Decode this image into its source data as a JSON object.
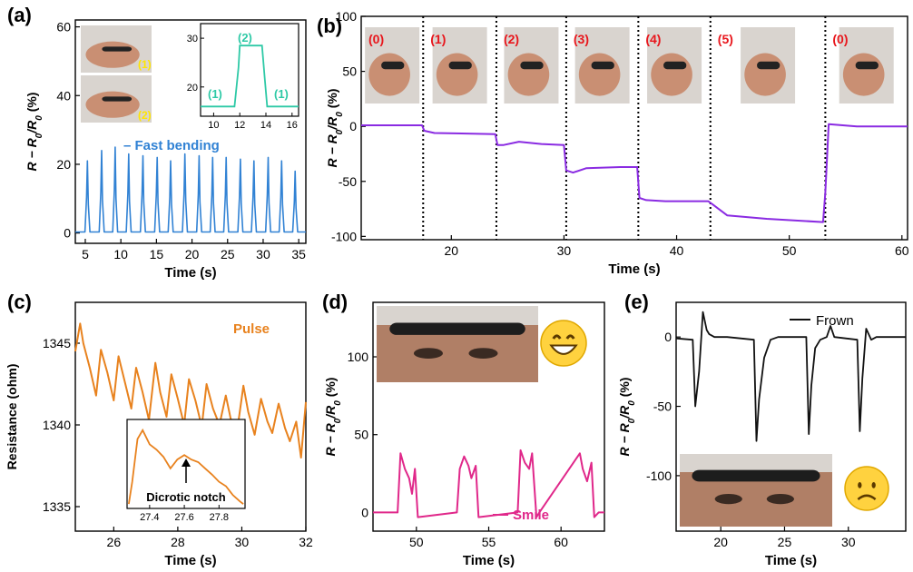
{
  "figure": {
    "panel_labels": [
      "(a)",
      "(b)",
      "(c)",
      "(d)",
      "(e)"
    ]
  },
  "colors": {
    "a": "#3182d4",
    "a_inset": "#2ec9a6",
    "b": "#8a2be2",
    "c": "#e8821e",
    "d": "#e0288a",
    "e": "#111111",
    "photo_label_yellow": "#ffe600",
    "photo_label_red": "#e8161c"
  },
  "chart_data": [
    {
      "panel": "a",
      "type": "line",
      "xlabel": "Time (s)",
      "ylabel": "R − R0/R0 (%)",
      "xlim": [
        3.6,
        36
      ],
      "ylim": [
        -3,
        62
      ],
      "xticks": [
        5,
        10,
        15,
        20,
        25,
        30,
        35
      ],
      "yticks": [
        0,
        20,
        40,
        60
      ],
      "legend": "– Fast bending",
      "peak_times": [
        5.3,
        7.3,
        9.2,
        11.1,
        13.1,
        15.1,
        17.0,
        19.0,
        21.0,
        22.9,
        24.8,
        26.8,
        28.7,
        30.7,
        32.6,
        34.5
      ],
      "peak_values": [
        21,
        24,
        25,
        23,
        22.5,
        22,
        21,
        23,
        22.5,
        22,
        22,
        21.5,
        21,
        22,
        21,
        18
      ],
      "baseline": 0.3,
      "photo_labels": [
        "(1)",
        "(2)"
      ],
      "inset": {
        "type": "line",
        "xlim": [
          9,
          16.5
        ],
        "ylim": [
          14,
          33
        ],
        "xticks": [
          10,
          12,
          14,
          16
        ],
        "yticks": [
          20,
          30
        ],
        "x": [
          9.0,
          11.6,
          11.9,
          12.0,
          13.7,
          13.9,
          14.1,
          16.5
        ],
        "y": [
          16,
          16,
          24,
          28.5,
          28.5,
          22,
          16,
          16
        ],
        "labels": [
          "(1)",
          "(2)",
          "(1)"
        ]
      }
    },
    {
      "panel": "b",
      "type": "line",
      "xlabel": "Time (s)",
      "ylabel": "R − R0/R0 (%)",
      "xlim": [
        12,
        60.5
      ],
      "ylim": [
        -103,
        100
      ],
      "xticks": [
        20,
        30,
        40,
        50,
        60
      ],
      "yticks": [
        -100,
        -50,
        0,
        50,
        100
      ],
      "dividers": [
        17.5,
        24,
        30.2,
        36.6,
        43,
        53.2
      ],
      "photo_labels": [
        "(0)",
        "(1)",
        "(2)",
        "(3)",
        "(4)",
        "(5)",
        "(0)"
      ],
      "x": [
        12,
        17.4,
        17.6,
        18.5,
        23.9,
        24.1,
        24.6,
        26,
        28,
        30.0,
        30.2,
        30.8,
        32,
        35,
        36.5,
        36.7,
        37.3,
        39,
        42.8,
        43.2,
        44.5,
        48,
        53.0,
        53.2,
        53.5,
        56,
        60.5
      ],
      "y": [
        1,
        1,
        -4,
        -6,
        -7,
        -17,
        -17,
        -14,
        -16,
        -17,
        -40,
        -42,
        -38,
        -37,
        -37,
        -65,
        -67,
        -68,
        -68,
        -71,
        -81,
        -84,
        -87,
        -60,
        2,
        0,
        0
      ]
    },
    {
      "panel": "c",
      "type": "line",
      "xlabel": "Time (s)",
      "ylabel": "Resistance (ohm)",
      "xlim": [
        24.8,
        32
      ],
      "ylim": [
        1333.5,
        1347.5
      ],
      "xticks": [
        26,
        28,
        30,
        32
      ],
      "yticks": [
        1335,
        1340,
        1345
      ],
      "legend": "Pulse",
      "x": [
        24.8,
        24.95,
        25.05,
        25.25,
        25.45,
        25.6,
        25.8,
        26.0,
        26.15,
        26.35,
        26.55,
        26.7,
        26.9,
        27.1,
        27.3,
        27.45,
        27.65,
        27.8,
        28.0,
        28.2,
        28.35,
        28.55,
        28.75,
        28.9,
        29.1,
        29.3,
        29.5,
        29.65,
        29.85,
        30.05,
        30.2,
        30.4,
        30.6,
        30.8,
        30.95,
        31.15,
        31.35,
        31.5,
        31.7,
        31.85,
        32.0
      ],
      "y": [
        1344.5,
        1346.2,
        1345.0,
        1343.5,
        1341.8,
        1344.6,
        1343.2,
        1341.5,
        1344.2,
        1342.6,
        1341.0,
        1343.5,
        1342.0,
        1340.3,
        1343.8,
        1342.0,
        1340.5,
        1343.1,
        1341.6,
        1340.0,
        1342.8,
        1341.5,
        1339.9,
        1342.5,
        1341.0,
        1340.0,
        1341.8,
        1340.4,
        1339.6,
        1342.4,
        1340.8,
        1339.4,
        1341.6,
        1340.2,
        1339.5,
        1341.3,
        1339.8,
        1339.0,
        1340.2,
        1338.0,
        1341.4
      ],
      "inset": {
        "type": "line",
        "xlim": [
          27.27,
          27.95
        ],
        "ylim": [
          0,
          1
        ],
        "xticks": [
          27.4,
          27.6,
          27.8
        ],
        "annotation": "Dicrotic notch",
        "x": [
          27.28,
          27.3,
          27.33,
          27.36,
          27.4,
          27.44,
          27.48,
          27.52,
          27.56,
          27.6,
          27.64,
          27.68,
          27.72,
          27.76,
          27.8,
          27.84,
          27.88,
          27.92,
          27.94
        ],
        "y": [
          0.05,
          0.3,
          0.78,
          0.88,
          0.72,
          0.66,
          0.58,
          0.45,
          0.55,
          0.6,
          0.55,
          0.52,
          0.45,
          0.38,
          0.3,
          0.25,
          0.15,
          0.08,
          0.05
        ]
      }
    },
    {
      "panel": "d",
      "type": "line",
      "xlabel": "Time (s)",
      "ylabel": "R − R0/R0 (%)",
      "xlim": [
        47,
        63
      ],
      "ylim": [
        -12,
        135
      ],
      "xticks": [
        50,
        55,
        60
      ],
      "yticks": [
        0,
        50,
        100
      ],
      "legend": "Smile",
      "x": [
        47,
        48.7,
        48.9,
        49.2,
        49.5,
        49.7,
        49.9,
        50.1,
        52.8,
        53.0,
        53.3,
        53.6,
        53.8,
        54.1,
        54.3,
        57.0,
        57.2,
        57.5,
        57.8,
        58.0,
        58.3,
        58.5,
        61.3,
        61.5,
        61.8,
        62.1,
        62.3,
        62.6,
        63
      ],
      "y": [
        0,
        0,
        38,
        28,
        22,
        12,
        28,
        -3,
        0,
        28,
        36,
        30,
        22,
        30,
        -3,
        0,
        40,
        32,
        28,
        38,
        -3,
        0,
        38,
        28,
        20,
        32,
        -3,
        0,
        0
      ]
    },
    {
      "panel": "e",
      "type": "line",
      "xlabel": "Time (s)",
      "ylabel": "R − R0/R0 (%)",
      "xlim": [
        16.5,
        34.5
      ],
      "ylim": [
        -140,
        25
      ],
      "xticks": [
        20,
        25,
        30
      ],
      "yticks": [
        -100,
        -50,
        0
      ],
      "legend": "Frown",
      "x": [
        16.5,
        17.8,
        18.0,
        18.3,
        18.6,
        18.9,
        19.1,
        19.5,
        20.5,
        22.6,
        22.8,
        23.0,
        23.4,
        23.9,
        24.5,
        26.7,
        26.9,
        27.1,
        27.4,
        27.8,
        28.3,
        28.6,
        28.9,
        30.7,
        30.9,
        31.1,
        31.4,
        31.8,
        32.2,
        34.5
      ],
      "y": [
        -1,
        -2,
        -50,
        -25,
        18,
        5,
        2,
        0,
        0,
        -2,
        -75,
        -45,
        -15,
        -2,
        0,
        0,
        -70,
        -35,
        -8,
        -2,
        0,
        8,
        0,
        -2,
        -68,
        -30,
        6,
        -2,
        0,
        0
      ]
    }
  ]
}
